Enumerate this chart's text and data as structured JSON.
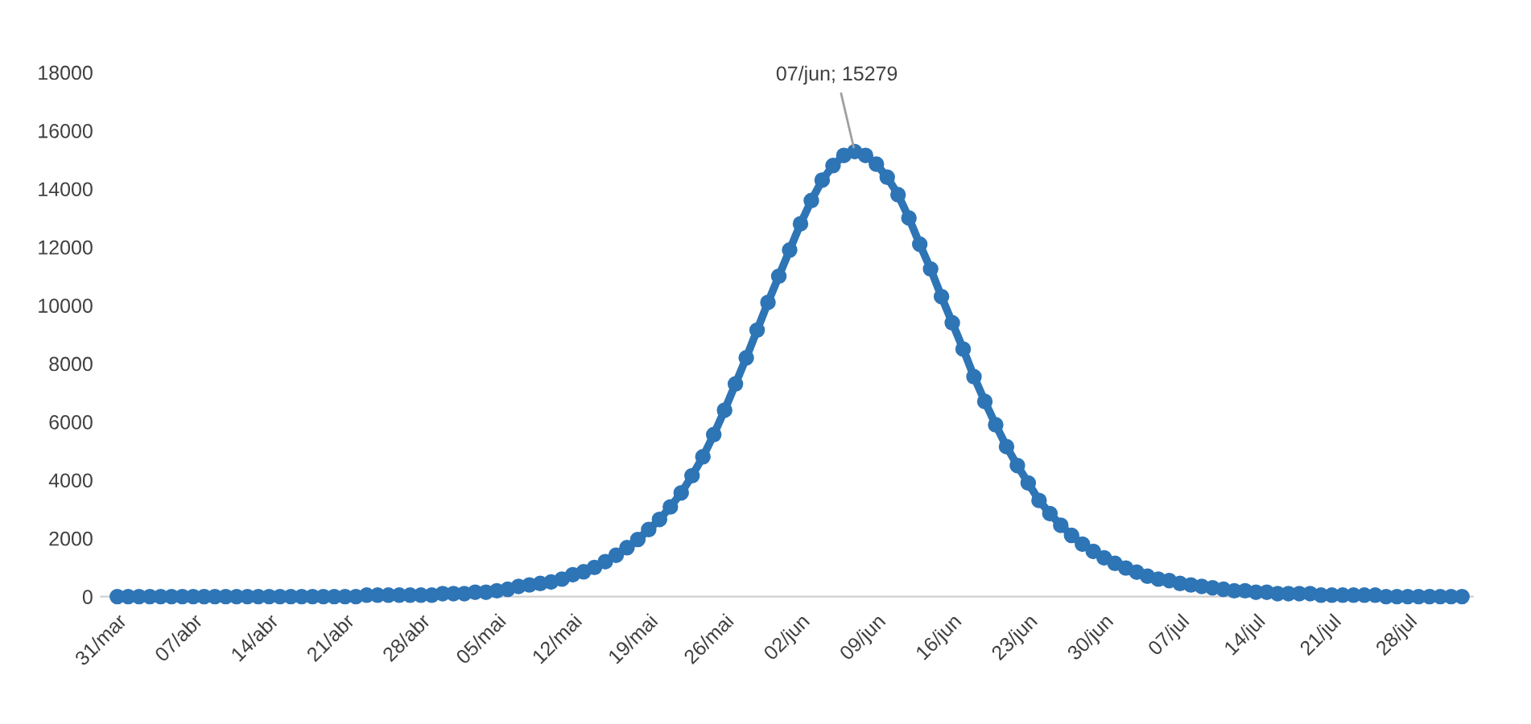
{
  "chart_data": {
    "type": "line",
    "categories": [
      "31/mar",
      null,
      null,
      null,
      null,
      null,
      null,
      "07/abr",
      null,
      null,
      null,
      null,
      null,
      null,
      "14/abr",
      null,
      null,
      null,
      null,
      null,
      null,
      "21/abr",
      null,
      null,
      null,
      null,
      null,
      null,
      "28/abr",
      null,
      null,
      null,
      null,
      null,
      null,
      "05/mai",
      null,
      null,
      null,
      null,
      null,
      null,
      "12/mai",
      null,
      null,
      null,
      null,
      null,
      null,
      "19/mai",
      null,
      null,
      null,
      null,
      null,
      null,
      "26/mai",
      null,
      null,
      null,
      null,
      null,
      null,
      "02/jun",
      null,
      null,
      null,
      null,
      null,
      null,
      "09/jun",
      null,
      null,
      null,
      null,
      null,
      null,
      "16/jun",
      null,
      null,
      null,
      null,
      null,
      null,
      "23/jun",
      null,
      null,
      null,
      null,
      null,
      null,
      "30/jun",
      null,
      null,
      null,
      null,
      null,
      null,
      "07/jul",
      null,
      null,
      null,
      null,
      null,
      null,
      "14/jul",
      null,
      null,
      null,
      null,
      null,
      null,
      "21/jul",
      null,
      null,
      null,
      null,
      null,
      null,
      "28/jul",
      null,
      null,
      null,
      null,
      null
    ],
    "values": [
      0,
      0,
      0,
      0,
      0,
      0,
      0,
      0,
      0,
      0,
      0,
      0,
      0,
      0,
      0,
      0,
      0,
      0,
      0,
      0,
      0,
      0,
      0,
      50,
      50,
      50,
      50,
      50,
      50,
      50,
      100,
      100,
      100,
      150,
      150,
      200,
      250,
      350,
      400,
      450,
      500,
      600,
      750,
      850,
      1000,
      1200,
      1420,
      1680,
      1960,
      2300,
      2650,
      3080,
      3560,
      4150,
      4800,
      5560,
      6400,
      7300,
      8200,
      9150,
      10100,
      11000,
      11900,
      12800,
      13600,
      14300,
      14800,
      15150,
      15279,
      15150,
      14850,
      14400,
      13800,
      13000,
      12100,
      11250,
      10300,
      9400,
      8500,
      7550,
      6700,
      5900,
      5150,
      4500,
      3900,
      3300,
      2850,
      2450,
      2100,
      1800,
      1550,
      1330,
      1140,
      980,
      840,
      700,
      600,
      550,
      450,
      400,
      350,
      300,
      250,
      200,
      200,
      150,
      150,
      100,
      100,
      100,
      100,
      50,
      50,
      50,
      50,
      50,
      50,
      0,
      0,
      0,
      0,
      0,
      0,
      0,
      0
    ],
    "value_labels": [
      null,
      null,
      null,
      null,
      null,
      null,
      null,
      null,
      null,
      null,
      null,
      null,
      null,
      null,
      null,
      null,
      null,
      null,
      null,
      null,
      null,
      null,
      null,
      null,
      null,
      null,
      null,
      null,
      null,
      null,
      null,
      null,
      null,
      null,
      null,
      null,
      null,
      null,
      null,
      null,
      null,
      null,
      null,
      null,
      null,
      null,
      null,
      null,
      null,
      null,
      null,
      null,
      null,
      null,
      null,
      null,
      null,
      null,
      null,
      null,
      null,
      null,
      null,
      null,
      null,
      null,
      null,
      null,
      "07/jun; 15279",
      null,
      null,
      null,
      null,
      null,
      null,
      null,
      null,
      null,
      null,
      null,
      null,
      null,
      null,
      null,
      null,
      null,
      null,
      null,
      null,
      null,
      null,
      null,
      null,
      null,
      null,
      null,
      null,
      null,
      null,
      null,
      null,
      null,
      null,
      null,
      null,
      null,
      null,
      null,
      null,
      null,
      null,
      null,
      null,
      null,
      null,
      null,
      null,
      null,
      null,
      null,
      null,
      null,
      null,
      null,
      null
    ],
    "color": "#2e75b6",
    "marker": "circle",
    "line_style": "solid",
    "ylim": [
      0,
      18000
    ],
    "yticks": [
      0,
      2000,
      4000,
      6000,
      8000,
      10000,
      12000,
      14000,
      16000,
      18000
    ]
  }
}
